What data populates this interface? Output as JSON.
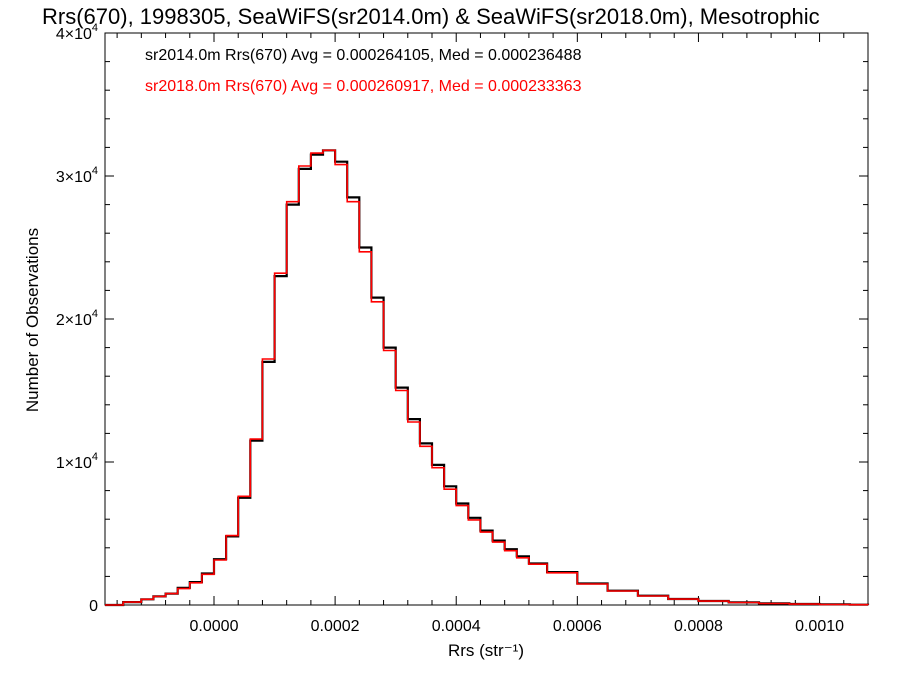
{
  "chart_data": {
    "type": "line",
    "title": "Rrs(670), 1998305, SeaWiFS(sr2014.0m) & SeaWiFS(sr2018.0m), Mesotrophic",
    "xlabel": "Rrs (str⁻¹)",
    "ylabel": "Number of Observations",
    "xlim": [
      -0.00018,
      0.00108
    ],
    "ylim": [
      0,
      40000
    ],
    "x_ticks": [
      0.0,
      0.0002,
      0.0004,
      0.0006,
      0.0008,
      0.001
    ],
    "x_tick_labels": [
      "0.0000",
      "0.0002",
      "0.0004",
      "0.0006",
      "0.0008",
      "0.0010"
    ],
    "y_ticks": [
      0,
      10000,
      20000,
      30000,
      40000
    ],
    "y_tick_labels": [
      {
        "mantissa": "0",
        "exponent": ""
      },
      {
        "mantissa": "1×10",
        "exponent": "4"
      },
      {
        "mantissa": "2×10",
        "exponent": "4"
      },
      {
        "mantissa": "3×10",
        "exponent": "4"
      },
      {
        "mantissa": "4×10",
        "exponent": "4"
      }
    ],
    "grid": false,
    "legend_position": "top-left",
    "series": [
      {
        "name": "sr2014.0m Rrs(670) Avg = 0.000264105, Med = 0.000236488",
        "color": "#000000",
        "x": [
          -0.00018,
          -0.00015,
          -0.00012,
          -0.0001,
          -8e-05,
          -6e-05,
          -4e-05,
          -2e-05,
          0.0,
          2e-05,
          4e-05,
          6e-05,
          8e-05,
          0.0001,
          0.00012,
          0.00014,
          0.00016,
          0.00018,
          0.0002,
          0.00022,
          0.00024,
          0.00026,
          0.00028,
          0.0003,
          0.00032,
          0.00034,
          0.00036,
          0.00038,
          0.0004,
          0.00042,
          0.00044,
          0.00046,
          0.00048,
          0.0005,
          0.00052,
          0.00055,
          0.0006,
          0.00065,
          0.0007,
          0.00075,
          0.0008,
          0.00085,
          0.0009,
          0.00095,
          0.001,
          0.00105,
          0.00108
        ],
        "y": [
          0,
          200,
          400,
          600,
          800,
          1200,
          1600,
          2200,
          3200,
          4800,
          7500,
          11500,
          17000,
          23000,
          28000,
          30500,
          31500,
          31800,
          31000,
          28500,
          25000,
          21500,
          18000,
          15200,
          13000,
          11300,
          9800,
          8300,
          7100,
          6100,
          5200,
          4500,
          3900,
          3400,
          2900,
          2300,
          1500,
          1000,
          650,
          420,
          280,
          180,
          110,
          70,
          40,
          20,
          10
        ]
      },
      {
        "name": "sr2018.0m Rrs(670) Avg = 0.000260917, Med = 0.000233363",
        "color": "#ff0000",
        "x": [
          -0.00018,
          -0.00015,
          -0.00012,
          -0.0001,
          -8e-05,
          -6e-05,
          -4e-05,
          -2e-05,
          0.0,
          2e-05,
          4e-05,
          6e-05,
          8e-05,
          0.0001,
          0.00012,
          0.00014,
          0.00016,
          0.00018,
          0.0002,
          0.00022,
          0.00024,
          0.00026,
          0.00028,
          0.0003,
          0.00032,
          0.00034,
          0.00036,
          0.00038,
          0.0004,
          0.00042,
          0.00044,
          0.00046,
          0.00048,
          0.0005,
          0.00052,
          0.00055,
          0.0006,
          0.00065,
          0.0007,
          0.00075,
          0.0008,
          0.00085,
          0.0009,
          0.00095,
          0.001,
          0.00105,
          0.00108
        ],
        "y": [
          0,
          200,
          400,
          600,
          800,
          1150,
          1550,
          2150,
          3150,
          4850,
          7600,
          11600,
          17200,
          23200,
          28200,
          30700,
          31600,
          31800,
          30800,
          28200,
          24700,
          21200,
          17800,
          15000,
          12800,
          11100,
          9600,
          8100,
          6950,
          5950,
          5100,
          4400,
          3800,
          3300,
          2850,
          2250,
          1470,
          980,
          630,
          410,
          270,
          175,
          105,
          65,
          38,
          18,
          8
        ]
      }
    ]
  }
}
